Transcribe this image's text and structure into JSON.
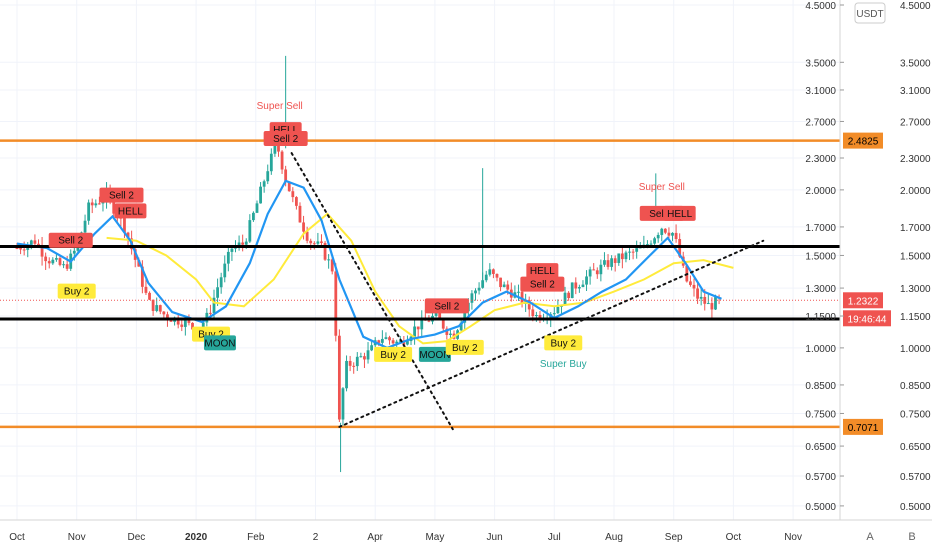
{
  "chart_data": {
    "type": "candlestick",
    "currency_label": "USDT",
    "y_scale": "log",
    "ylim": [
      0.47,
      4.6
    ],
    "x_labels": [
      "Oct",
      "Nov",
      "Dec",
      "2020",
      "Feb",
      "2",
      "Apr",
      "May",
      "Jun",
      "Jul",
      "Aug",
      "Sep",
      "Oct",
      "Nov"
    ],
    "y_ticks_left": [
      "4.5000",
      "3.5000",
      "3.1000",
      "2.7000",
      "2.3000",
      "2.0000",
      "1.7000",
      "1.5000",
      "1.3000",
      "1.1500",
      "1.0000",
      "0.8500",
      "0.7500",
      "0.6500",
      "0.5700",
      "0.5000"
    ],
    "y_ticks_right": [
      "4.5000",
      "3.5000",
      "3.1000",
      "2.7000",
      "2.3000",
      "2.0000",
      "1.7000",
      "1.5000",
      "1.3000",
      "1.1500",
      "1.0000",
      "0.8500",
      "0.7500",
      "0.6500",
      "0.5700",
      "0.5000"
    ],
    "horizontal_levels": [
      {
        "price": 2.4825,
        "label": "2.4825",
        "color": "#f28c28"
      },
      {
        "price": 0.7071,
        "label": "0.7071",
        "color": "#f28c28"
      },
      {
        "price": 1.56,
        "color": "#000000"
      },
      {
        "price": 1.135,
        "color": "#000000"
      }
    ],
    "last_price": {
      "value": 1.2322,
      "label": "1.2322",
      "color": "#ef5350"
    },
    "countdown": {
      "label": "19:46:44"
    },
    "price_series": [
      {
        "x": 0,
        "y": 1.55
      },
      {
        "x": 0.3,
        "y": 1.6
      },
      {
        "x": 0.5,
        "y": 1.48
      },
      {
        "x": 0.8,
        "y": 1.42
      },
      {
        "x": 1.0,
        "y": 1.55
      },
      {
        "x": 1.2,
        "y": 1.85
      },
      {
        "x": 1.5,
        "y": 1.95
      },
      {
        "x": 1.8,
        "y": 1.7
      },
      {
        "x": 2.0,
        "y": 1.45
      },
      {
        "x": 2.2,
        "y": 1.22
      },
      {
        "x": 2.5,
        "y": 1.15
      },
      {
        "x": 2.8,
        "y": 1.12
      },
      {
        "x": 3.0,
        "y": 1.08
      },
      {
        "x": 3.2,
        "y": 1.15
      },
      {
        "x": 3.4,
        "y": 1.35
      },
      {
        "x": 3.6,
        "y": 1.55
      },
      {
        "x": 3.8,
        "y": 1.58
      },
      {
        "x": 4.0,
        "y": 1.85
      },
      {
        "x": 4.2,
        "y": 2.2
      },
      {
        "x": 4.35,
        "y": 2.45
      },
      {
        "x": 4.5,
        "y": 2.1
      },
      {
        "x": 4.7,
        "y": 1.8
      },
      {
        "x": 4.9,
        "y": 1.6
      },
      {
        "x": 5.1,
        "y": 1.55
      },
      {
        "x": 5.3,
        "y": 1.4
      },
      {
        "x": 5.4,
        "y": 0.72
      },
      {
        "x": 5.5,
        "y": 0.92
      },
      {
        "x": 5.7,
        "y": 0.95
      },
      {
        "x": 5.9,
        "y": 0.98
      },
      {
        "x": 6.1,
        "y": 1.05
      },
      {
        "x": 6.4,
        "y": 1.02
      },
      {
        "x": 6.7,
        "y": 1.1
      },
      {
        "x": 7.0,
        "y": 1.15
      },
      {
        "x": 7.3,
        "y": 1.05
      },
      {
        "x": 7.6,
        "y": 1.25
      },
      {
        "x": 7.9,
        "y": 1.4
      },
      {
        "x": 8.1,
        "y": 1.32
      },
      {
        "x": 8.4,
        "y": 1.25
      },
      {
        "x": 8.7,
        "y": 1.15
      },
      {
        "x": 9.0,
        "y": 1.18
      },
      {
        "x": 9.3,
        "y": 1.3
      },
      {
        "x": 9.6,
        "y": 1.38
      },
      {
        "x": 9.9,
        "y": 1.45
      },
      {
        "x": 10.2,
        "y": 1.5
      },
      {
        "x": 10.5,
        "y": 1.55
      },
      {
        "x": 10.8,
        "y": 1.7
      },
      {
        "x": 11.0,
        "y": 1.65
      },
      {
        "x": 11.2,
        "y": 1.35
      },
      {
        "x": 11.4,
        "y": 1.25
      },
      {
        "x": 11.6,
        "y": 1.2
      },
      {
        "x": 11.7,
        "y": 1.22
      },
      {
        "x": 11.8,
        "y": 1.2322
      }
    ],
    "blue_ma": [
      {
        "x": 0,
        "y": 1.58
      },
      {
        "x": 0.5,
        "y": 1.55
      },
      {
        "x": 0.9,
        "y": 1.46
      },
      {
        "x": 1.3,
        "y": 1.65
      },
      {
        "x": 1.6,
        "y": 1.78
      },
      {
        "x": 1.9,
        "y": 1.6
      },
      {
        "x": 2.2,
        "y": 1.33
      },
      {
        "x": 2.6,
        "y": 1.17
      },
      {
        "x": 3.1,
        "y": 1.12
      },
      {
        "x": 3.5,
        "y": 1.2
      },
      {
        "x": 3.9,
        "y": 1.45
      },
      {
        "x": 4.2,
        "y": 1.8
      },
      {
        "x": 4.5,
        "y": 2.08
      },
      {
        "x": 4.8,
        "y": 2.02
      },
      {
        "x": 5.1,
        "y": 1.75
      },
      {
        "x": 5.4,
        "y": 1.35
      },
      {
        "x": 5.8,
        "y": 1.05
      },
      {
        "x": 6.2,
        "y": 1.0
      },
      {
        "x": 6.6,
        "y": 1.04
      },
      {
        "x": 7.0,
        "y": 1.06
      },
      {
        "x": 7.4,
        "y": 1.1
      },
      {
        "x": 7.8,
        "y": 1.22
      },
      {
        "x": 8.2,
        "y": 1.28
      },
      {
        "x": 8.6,
        "y": 1.22
      },
      {
        "x": 9.0,
        "y": 1.14
      },
      {
        "x": 9.4,
        "y": 1.2
      },
      {
        "x": 9.8,
        "y": 1.28
      },
      {
        "x": 10.2,
        "y": 1.35
      },
      {
        "x": 10.6,
        "y": 1.5
      },
      {
        "x": 10.9,
        "y": 1.62
      },
      {
        "x": 11.2,
        "y": 1.45
      },
      {
        "x": 11.5,
        "y": 1.28
      },
      {
        "x": 11.8,
        "y": 1.24
      }
    ],
    "yellow_ma": [
      {
        "x": 1.5,
        "y": 1.62
      },
      {
        "x": 2.0,
        "y": 1.6
      },
      {
        "x": 2.5,
        "y": 1.5
      },
      {
        "x": 3.0,
        "y": 1.35
      },
      {
        "x": 3.3,
        "y": 1.22
      },
      {
        "x": 3.8,
        "y": 1.2
      },
      {
        "x": 4.3,
        "y": 1.35
      },
      {
        "x": 4.8,
        "y": 1.65
      },
      {
        "x": 5.2,
        "y": 1.8
      },
      {
        "x": 5.6,
        "y": 1.6
      },
      {
        "x": 6.0,
        "y": 1.28
      },
      {
        "x": 6.4,
        "y": 1.1
      },
      {
        "x": 6.8,
        "y": 1.02
      },
      {
        "x": 7.2,
        "y": 1.03
      },
      {
        "x": 7.6,
        "y": 1.1
      },
      {
        "x": 8.0,
        "y": 1.18
      },
      {
        "x": 8.5,
        "y": 1.22
      },
      {
        "x": 9.0,
        "y": 1.2
      },
      {
        "x": 9.5,
        "y": 1.22
      },
      {
        "x": 10.0,
        "y": 1.28
      },
      {
        "x": 10.5,
        "y": 1.35
      },
      {
        "x": 11.0,
        "y": 1.45
      },
      {
        "x": 11.5,
        "y": 1.47
      },
      {
        "x": 12.0,
        "y": 1.42
      }
    ],
    "trendlines": [
      {
        "x1": 4.6,
        "y1": 2.35,
        "x2": 7.3,
        "y2": 0.7
      },
      {
        "x1": 5.4,
        "y1": 0.7071,
        "x2": 12.5,
        "y2": 1.6
      }
    ],
    "signals": [
      {
        "label": "Sell 2",
        "type": "sell",
        "x": 0.9,
        "y": 1.6
      },
      {
        "label": "Buy 2",
        "type": "buy",
        "x": 1.0,
        "y": 1.28
      },
      {
        "label": "Sell 2",
        "type": "sell",
        "x": 1.75,
        "y": 1.95
      },
      {
        "label": "HELL",
        "type": "sell",
        "x": 1.9,
        "y": 1.82
      },
      {
        "label": "Buy 2",
        "type": "buy",
        "x": 3.25,
        "y": 1.06
      },
      {
        "label": "MOON",
        "type": "moon",
        "x": 3.4,
        "y": 1.02
      },
      {
        "label": "Super Sell",
        "type": "supersell",
        "x": 4.4,
        "y": 2.85
      },
      {
        "label": "HELL",
        "type": "sell",
        "x": 4.5,
        "y": 2.6
      },
      {
        "label": "Sell 2",
        "type": "sell",
        "x": 4.5,
        "y": 2.5
      },
      {
        "label": "Buy 2",
        "type": "buy",
        "x": 6.3,
        "y": 0.97
      },
      {
        "label": "MOON",
        "type": "moon",
        "x": 7.0,
        "y": 0.97
      },
      {
        "label": "Sell 2",
        "type": "sell",
        "x": 7.2,
        "y": 1.2
      },
      {
        "label": "Buy 2",
        "type": "buy",
        "x": 7.5,
        "y": 1.0
      },
      {
        "label": "HELL",
        "type": "sell",
        "x": 8.8,
        "y": 1.4
      },
      {
        "label": "Sell 2",
        "type": "sell",
        "x": 8.8,
        "y": 1.32
      },
      {
        "label": "Buy 2",
        "type": "buy",
        "x": 9.15,
        "y": 1.02
      },
      {
        "label": "Super Buy",
        "type": "superbuy",
        "x": 9.15,
        "y": 0.92
      },
      {
        "label": "Super Sell",
        "type": "supersell",
        "x": 10.8,
        "y": 2.0
      },
      {
        "label": "Sell 2",
        "type": "sell",
        "x": 10.8,
        "y": 1.8
      },
      {
        "label": "HELL",
        "type": "sell",
        "x": 11.1,
        "y": 1.8
      }
    ]
  },
  "ui": {
    "scale_buttons": [
      "A",
      "B"
    ]
  }
}
